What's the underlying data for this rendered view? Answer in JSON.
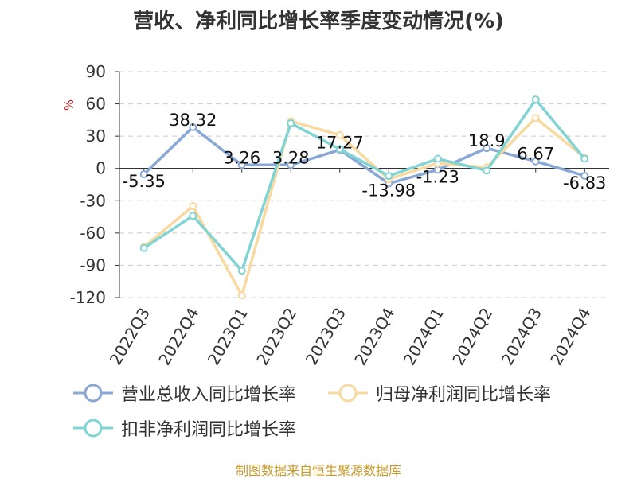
{
  "title": "营收、净利同比增长率季度变动情况(%)",
  "footer": "制图数据来自恒生聚源数据库",
  "colors": {
    "revenue": "#8aa8d6",
    "net_profit": "#f8d9a0",
    "deducted": "#82d4d4",
    "footer": "#c79a2c",
    "unit": "#cc2222",
    "grid": "#cccccc",
    "axis": "#333333"
  },
  "chart_data": {
    "type": "line",
    "unit_label": "%",
    "categories": [
      "2022Q3",
      "2022Q4",
      "2023Q1",
      "2023Q2",
      "2023Q3",
      "2023Q4",
      "2024Q1",
      "2024Q2",
      "2024Q3",
      "2024Q4"
    ],
    "yticks": [
      90,
      60,
      30,
      0,
      -30,
      -60,
      -90,
      -120
    ],
    "ylim": [
      -120,
      90
    ],
    "grid": true,
    "legend_position": "bottom",
    "series": [
      {
        "name": "营业总收入同比增长率",
        "values": [
          -5.35,
          38.32,
          3.26,
          3.28,
          17.27,
          -13.98,
          -1.23,
          18.9,
          6.67,
          -6.83
        ],
        "labels": [
          "-5.35",
          "38.32",
          "3.26",
          "3.28",
          "17.27",
          "-13.98",
          "-1.23",
          "18.9",
          "6.67",
          "-6.83"
        ]
      },
      {
        "name": "归母净利润同比增长率",
        "values": [
          -73,
          -35,
          -118,
          44,
          31,
          -10,
          5,
          1,
          47,
          10
        ]
      },
      {
        "name": "扣非净利润同比增长率",
        "values": [
          -74,
          -44,
          -95,
          42,
          18,
          -7,
          9,
          -2,
          64,
          9
        ]
      }
    ]
  }
}
